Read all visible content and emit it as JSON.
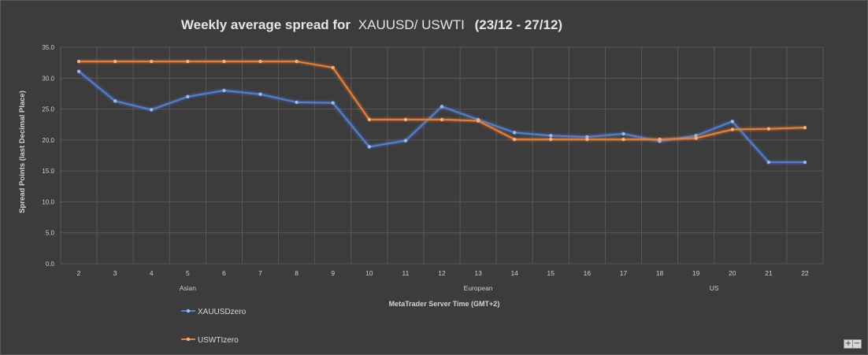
{
  "chart_data": {
    "type": "line",
    "title_bold": "Weekly average spread for",
    "title_regular": "XAUUSD/ USWTI",
    "title_dates": "(23/12 - 27/12)",
    "xlabel": "MetaTrader Server Time (GMT+2)",
    "ylabel": "Spread Points  (last Decimal Place)",
    "x": [
      2,
      3,
      4,
      5,
      6,
      7,
      8,
      9,
      10,
      11,
      12,
      13,
      14,
      15,
      16,
      17,
      18,
      19,
      20,
      21,
      22
    ],
    "ylim": [
      0,
      35
    ],
    "yticks": [
      "0.0",
      "5.0",
      "10.0",
      "15.0",
      "20.0",
      "25.0",
      "30.0",
      "35.0"
    ],
    "session_labels": [
      {
        "text": "Asian",
        "at": 5
      },
      {
        "text": "European",
        "at": 13
      },
      {
        "text": "US",
        "at": 19.5
      }
    ],
    "grid": true,
    "legend_position": "bottom-left",
    "series": [
      {
        "name": "XAUUSDzero",
        "color": "#4f7fd6",
        "values": [
          31.1,
          26.3,
          24.9,
          27.0,
          28.0,
          27.4,
          26.1,
          26.0,
          18.9,
          19.9,
          25.4,
          23.3,
          21.2,
          20.7,
          20.5,
          21.0,
          19.8,
          20.7,
          23.0,
          16.4,
          16.4
        ]
      },
      {
        "name": "USWTIzero",
        "color": "#ec7d31",
        "values": [
          32.7,
          32.7,
          32.7,
          32.7,
          32.7,
          32.7,
          32.7,
          31.7,
          23.3,
          23.3,
          23.3,
          23.1,
          20.1,
          20.1,
          20.1,
          20.1,
          20.1,
          20.3,
          21.7,
          21.8,
          22.0
        ]
      }
    ]
  },
  "controls": {
    "zoom_in": "+",
    "zoom_out": "−"
  }
}
